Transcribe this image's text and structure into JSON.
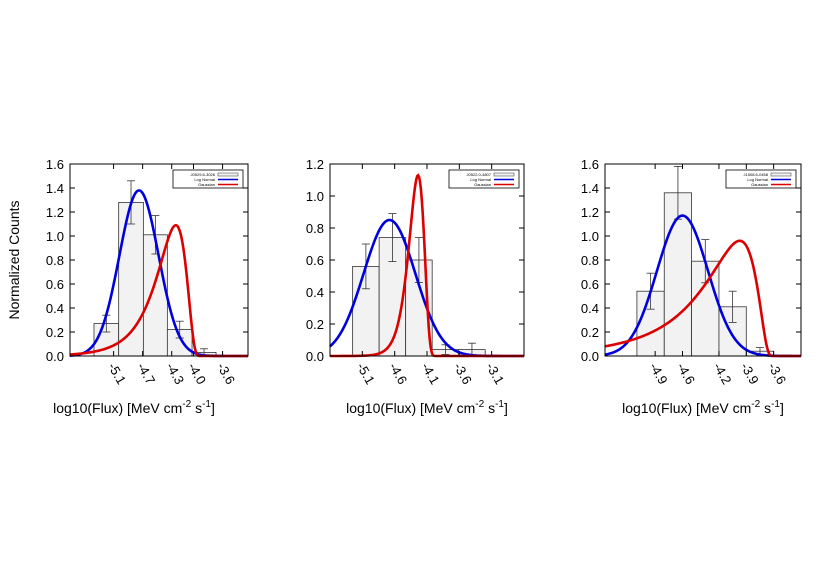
{
  "figure": {
    "ylabel": "Normalized Counts",
    "xlabel_main": "log10(Flux) [MeV cm",
    "xlabel_exp1": "-2",
    "xlabel_mid": " s",
    "xlabel_exp2": "-1",
    "xlabel_end": "]"
  },
  "colors": {
    "hist_fill": "#f2f2f2",
    "lognormal": "#0000dd",
    "gaussian": "#dd0000"
  },
  "chart_data": [
    {
      "type": "bar",
      "xlim": [
        -5.7,
        -3.25
      ],
      "ylim": [
        0,
        1.6
      ],
      "yticks": [
        "0.0",
        "0.2",
        "0.4",
        "0.6",
        "0.8",
        "1.0",
        "1.2",
        "1.4",
        "1.6"
      ],
      "xticks": [
        {
          "v": -5.1,
          "label": "-5.1"
        },
        {
          "v": -4.7,
          "label": "-4.7"
        },
        {
          "v": -4.3,
          "label": "-4.3"
        },
        {
          "v": -4.0,
          "label": "-4.0"
        },
        {
          "v": -3.6,
          "label": "-3.6"
        }
      ],
      "bins": [
        {
          "x0": -5.37,
          "x1": -5.03,
          "y": 0.27,
          "err": 0.07
        },
        {
          "x0": -5.03,
          "x1": -4.69,
          "y": 1.28,
          "err": 0.18
        },
        {
          "x0": -4.69,
          "x1": -4.36,
          "y": 1.01,
          "err": 0.16
        },
        {
          "x0": -4.36,
          "x1": -4.02,
          "y": 0.22,
          "err": 0.07
        },
        {
          "x0": -4.02,
          "x1": -3.69,
          "y": 0.03,
          "err": 0.03
        }
      ],
      "legend": [
        "J0529.6-3026",
        "Log Normal",
        "Gaussian"
      ],
      "series": [
        {
          "name": "Log Normal",
          "curve": "gauss",
          "amp": 1.38,
          "mu": -4.75,
          "sigma": 0.27
        },
        {
          "name": "Gaussian",
          "curve": "lognorm",
          "amp": 1.09,
          "c": -3.88,
          "m": -0.72,
          "s": 0.54
        }
      ]
    },
    {
      "type": "bar",
      "xlim": [
        -5.6,
        -2.6
      ],
      "ylim": [
        0,
        1.2
      ],
      "yticks": [
        "0.0",
        "0.2",
        "0.4",
        "0.6",
        "0.8",
        "1.0",
        "1.2"
      ],
      "xticks": [
        {
          "v": -5.1,
          "label": "-5.1"
        },
        {
          "v": -4.6,
          "label": "-4.6"
        },
        {
          "v": -4.1,
          "label": "-4.1"
        },
        {
          "v": -3.6,
          "label": "-3.6"
        },
        {
          "v": -3.1,
          "label": "-3.1"
        }
      ],
      "bins": [
        {
          "x0": -5.25,
          "x1": -4.84,
          "y": 0.56,
          "err": 0.14
        },
        {
          "x0": -4.84,
          "x1": -4.43,
          "y": 0.74,
          "err": 0.15
        },
        {
          "x0": -4.43,
          "x1": -4.02,
          "y": 0.6,
          "err": 0.14
        },
        {
          "x0": -4.02,
          "x1": -3.61,
          "y": 0.04,
          "err": 0.03
        },
        {
          "x0": -3.61,
          "x1": -3.2,
          "y": 0.04,
          "err": 0.04
        }
      ],
      "legend": [
        "J0522.0-4807",
        "Log Normal",
        "Gaussian"
      ],
      "series": [
        {
          "name": "Log Normal",
          "curve": "gauss",
          "amp": 0.85,
          "mu": -4.68,
          "sigma": 0.4
        },
        {
          "name": "Gaussian",
          "curve": "lognorm",
          "amp": 1.13,
          "c": -3.9,
          "m": -0.96,
          "s": 0.35
        }
      ]
    },
    {
      "type": "bar",
      "xlim": [
        -5.45,
        -3.3
      ],
      "ylim": [
        0,
        1.6
      ],
      "yticks": [
        "0.0",
        "0.2",
        "0.4",
        "0.6",
        "0.8",
        "1.0",
        "1.2",
        "1.4",
        "1.6"
      ],
      "xticks": [
        {
          "v": -4.9,
          "label": "-4.9"
        },
        {
          "v": -4.6,
          "label": "-4.6"
        },
        {
          "v": -4.2,
          "label": "-4.2"
        },
        {
          "v": -3.9,
          "label": "-3.9"
        },
        {
          "v": -3.6,
          "label": "-3.6"
        }
      ],
      "bins": [
        {
          "x0": -5.1,
          "x1": -4.8,
          "y": 0.54,
          "err": 0.15
        },
        {
          "x0": -4.8,
          "x1": -4.5,
          "y": 1.36,
          "err": 0.22
        },
        {
          "x0": -4.5,
          "x1": -4.2,
          "y": 0.79,
          "err": 0.18
        },
        {
          "x0": -4.2,
          "x1": -3.9,
          "y": 0.41,
          "err": 0.13
        },
        {
          "x0": -3.9,
          "x1": -3.6,
          "y": 0.04,
          "err": 0.03
        }
      ],
      "legend": [
        "J1508.6-0458",
        "Log Normal",
        "Gaussian"
      ],
      "series": [
        {
          "name": "Log Normal",
          "curve": "gauss",
          "amp": 1.17,
          "mu": -4.6,
          "sigma": 0.28
        },
        {
          "name": "Gaussian",
          "curve": "lognorm",
          "amp": 0.96,
          "c": -3.6,
          "m": -0.47,
          "s": 0.72
        }
      ]
    }
  ]
}
